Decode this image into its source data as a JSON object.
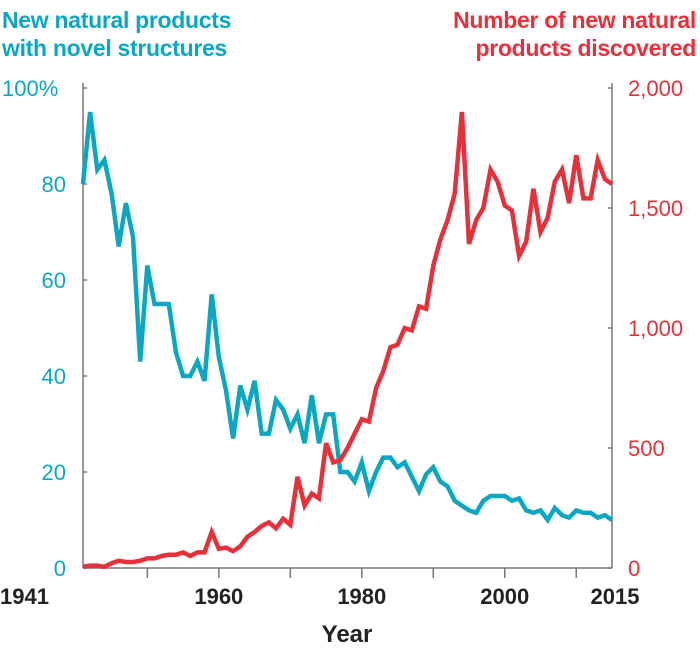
{
  "chart_data": {
    "type": "line",
    "title_left": [
      "New natural products",
      "with novel structures"
    ],
    "title_right": [
      "Number of new natural",
      "products discovered"
    ],
    "xlabel": "Year",
    "x_tick_labels": [
      "1941",
      "1960",
      "1980",
      "2000",
      "2015"
    ],
    "x_ticks": [
      1950,
      1960,
      1970,
      1980,
      1990,
      2000,
      2010
    ],
    "xlim": [
      1941,
      2015
    ],
    "y_left": {
      "ylim": [
        0,
        100
      ],
      "tick_labels": [
        "0",
        "20",
        "40",
        "60",
        "80",
        "100%"
      ],
      "ticks": [
        0,
        20,
        40,
        60,
        80,
        100
      ],
      "color": "#0ba7c2"
    },
    "y_right": {
      "ylim": [
        0,
        2000
      ],
      "tick_labels": [
        "0",
        "500",
        "1,000",
        "1,500",
        "2,000"
      ],
      "ticks": [
        0,
        500,
        1000,
        1500,
        2000
      ],
      "color": "#e8303a"
    },
    "grid": false,
    "x": [
      1941,
      1942,
      1943,
      1944,
      1945,
      1946,
      1947,
      1948,
      1949,
      1950,
      1951,
      1952,
      1953,
      1954,
      1955,
      1956,
      1957,
      1958,
      1959,
      1960,
      1961,
      1962,
      1963,
      1964,
      1965,
      1966,
      1967,
      1968,
      1969,
      1970,
      1971,
      1972,
      1973,
      1974,
      1975,
      1976,
      1977,
      1978,
      1979,
      1980,
      1981,
      1982,
      1983,
      1984,
      1985,
      1986,
      1987,
      1988,
      1989,
      1990,
      1991,
      1992,
      1993,
      1994,
      1995,
      1996,
      1997,
      1998,
      1999,
      2000,
      2001,
      2002,
      2003,
      2004,
      2005,
      2006,
      2007,
      2008,
      2009,
      2010,
      2011,
      2012,
      2013,
      2014,
      2015
    ],
    "series": [
      {
        "axis": "left",
        "color": "#0ba7c2",
        "values": [
          80,
          95,
          83,
          85,
          78,
          67,
          76,
          69,
          43,
          63,
          55,
          55,
          55,
          45,
          40,
          40,
          43,
          39,
          57,
          44,
          37,
          27,
          38,
          33,
          39,
          28,
          28,
          35,
          33,
          29,
          32,
          26,
          36,
          26,
          32,
          32,
          20,
          20,
          18,
          22,
          16,
          20,
          23,
          23,
          21,
          22,
          19,
          16,
          19.5,
          21,
          18,
          17,
          14,
          13,
          12,
          11.5,
          14,
          15,
          15,
          15,
          14,
          14.5,
          12,
          11.5,
          12,
          10,
          12.5,
          11,
          10.5,
          12,
          11.5,
          11.5,
          10.5,
          11,
          10
        ]
      },
      {
        "axis": "right",
        "color": "#e8303a",
        "values": [
          5,
          10,
          10,
          5,
          20,
          30,
          25,
          25,
          30,
          40,
          40,
          50,
          55,
          55,
          65,
          50,
          65,
          65,
          150,
          80,
          85,
          70,
          90,
          130,
          150,
          175,
          190,
          165,
          205,
          180,
          380,
          260,
          310,
          290,
          520,
          440,
          450,
          500,
          560,
          620,
          610,
          750,
          820,
          920,
          930,
          1000,
          990,
          1090,
          1080,
          1260,
          1370,
          1450,
          1560,
          1900,
          1350,
          1450,
          1500,
          1660,
          1610,
          1510,
          1490,
          1300,
          1360,
          1580,
          1400,
          1460,
          1610,
          1660,
          1520,
          1720,
          1540,
          1540,
          1700,
          1620,
          1600
        ]
      }
    ]
  }
}
